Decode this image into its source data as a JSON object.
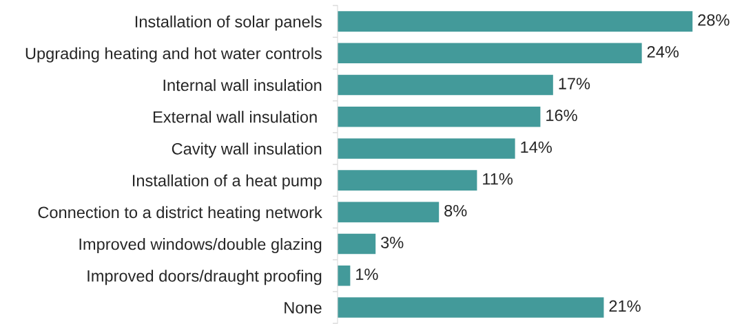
{
  "chart_data": {
    "type": "bar",
    "orientation": "horizontal",
    "categories": [
      "Installation of solar panels",
      "Upgrading heating and hot water controls",
      "Internal wall insulation",
      "External wall insulation ",
      "Cavity wall insulation",
      "Installation of a heat pump",
      "Connection to a district heating network",
      "Improved windows/double glazing",
      "Improved doors/draught proofing",
      "None"
    ],
    "values": [
      28,
      24,
      17,
      16,
      14,
      11,
      8,
      3,
      1,
      21
    ],
    "value_labels": [
      "28%",
      "24%",
      "17%",
      "16%",
      "14%",
      "11%",
      "8%",
      "3%",
      "1%",
      "21%"
    ],
    "color": "#439a9a",
    "tick_labels": "y",
    "grid": false,
    "legend": false
  }
}
